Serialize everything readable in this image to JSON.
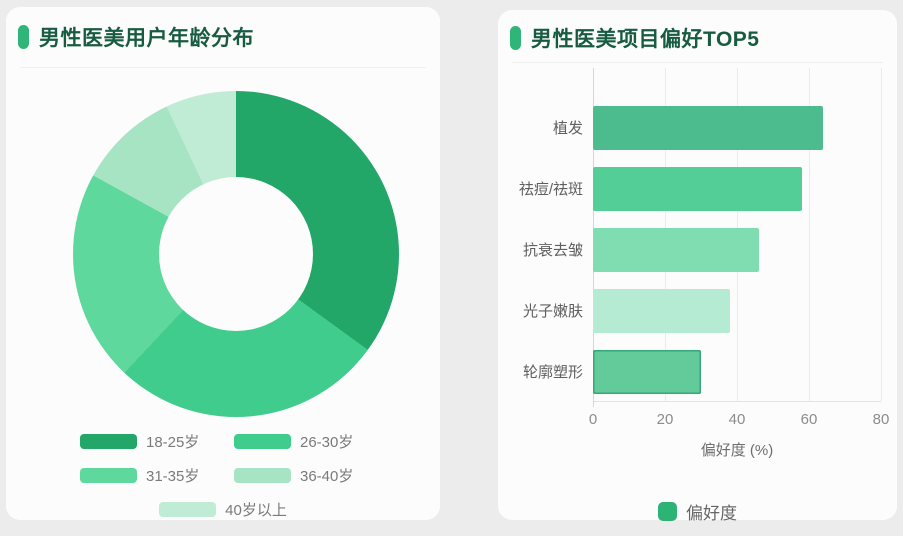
{
  "window": {
    "bg": "#ECECEC",
    "card_bg": "#FCFCFC",
    "accent": "#2FB577",
    "title_color": "#175B41"
  },
  "left_panel": {
    "title": "男性医美用户年龄分布"
  },
  "right_panel": {
    "title": "男性医美项目偏好TOP5"
  },
  "chart_data": [
    {
      "type": "pie",
      "title": "男性医美用户年龄分布",
      "labels": [
        "18-25岁",
        "26-30岁",
        "31-35岁",
        "36-40岁",
        "40岁以上"
      ],
      "values": [
        35,
        27,
        21,
        10,
        7
      ],
      "value_unit": "percent_of_users",
      "colors": [
        "#22A768",
        "#40CC8C",
        "#5ED89D",
        "#A6E4C3",
        "#C0ECD5"
      ],
      "donut_hole_ratio": 0.47,
      "start_angle": "12-oclock-clockwise",
      "legend_position": "bottom"
    },
    {
      "type": "bar",
      "orientation": "horizontal",
      "title": "男性医美项目偏好TOP5",
      "categories": [
        "植发",
        "祛痘/祛斑",
        "抗衰去皱",
        "光子嫩肤",
        "轮廓塑形"
      ],
      "values": [
        64,
        58,
        46,
        38,
        30
      ],
      "xlim": [
        0,
        80
      ],
      "x_ticks": [
        "0",
        "20",
        "40",
        "60",
        "80"
      ],
      "xlabel": "偏好度 (%)",
      "grid": true,
      "bar_colors": [
        "#4CBB8D",
        "#52CE96",
        "#80DDB2",
        "#B6EBD3",
        "#63CA99"
      ],
      "highlighted_bar": {
        "index": 4,
        "border_color": "#36A87C"
      },
      "legend": {
        "label": "偏好度",
        "color": "#2DB375",
        "position": "bottom"
      }
    }
  ]
}
